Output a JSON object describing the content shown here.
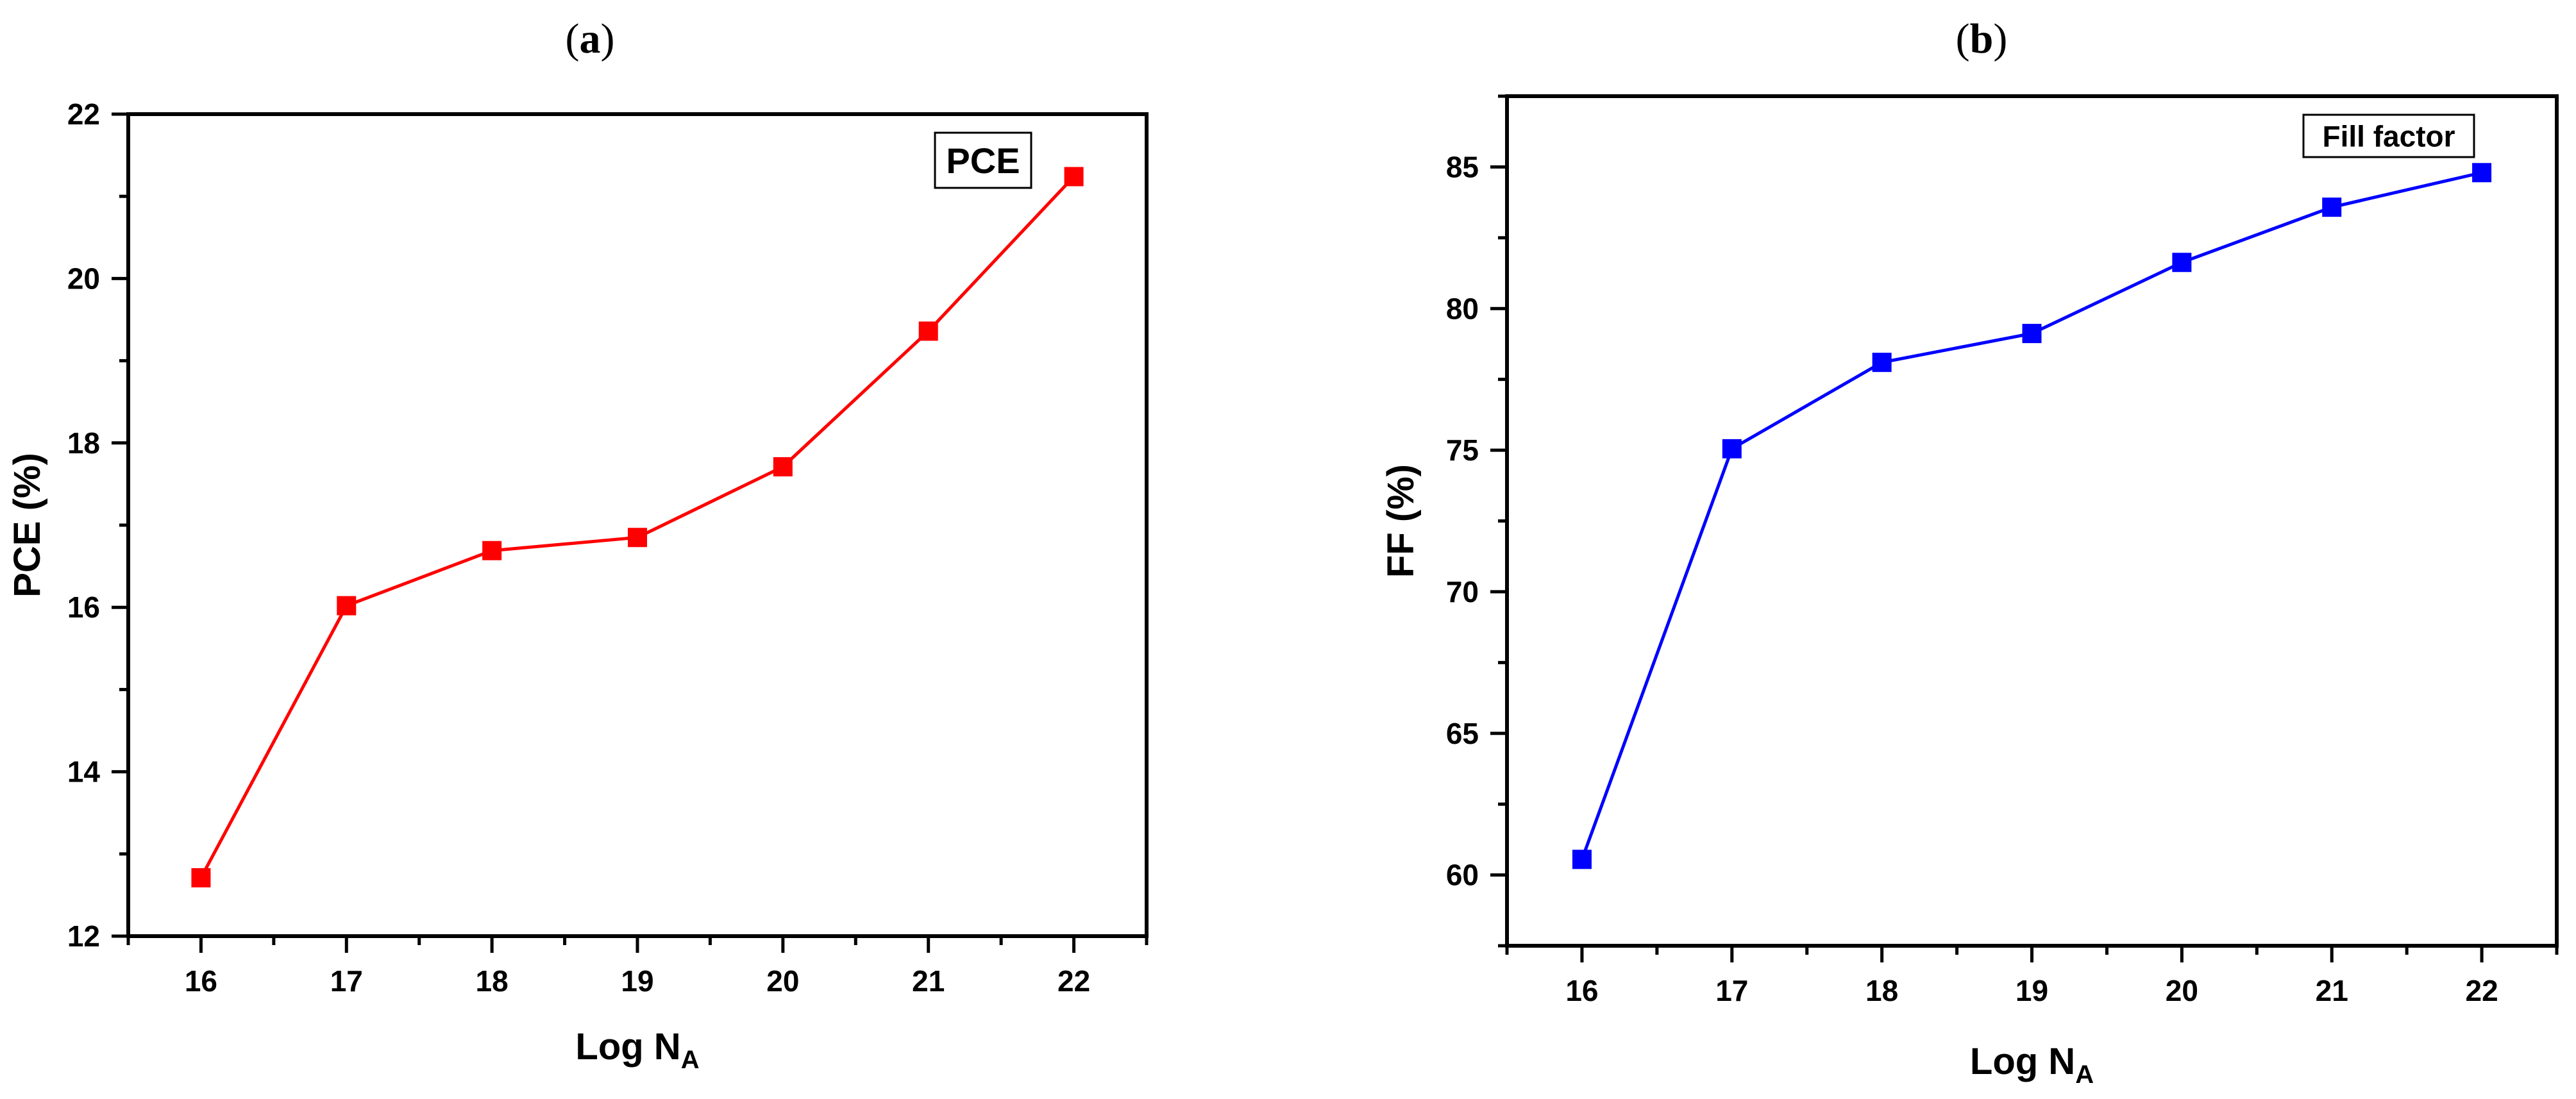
{
  "figure": {
    "panel_a_label": "a",
    "panel_b_label": "b"
  },
  "chart_data": [
    {
      "type": "line",
      "panel": "a",
      "xlabel_main": "Log N",
      "xlabel_sub": "A",
      "ylabel": "PCE (%)",
      "legend_label": "PCE",
      "legend_position": "top-right",
      "xlim": [
        15.5,
        22.5
      ],
      "ylim": [
        12,
        22
      ],
      "xticks": [
        16,
        17,
        18,
        19,
        20,
        21,
        22
      ],
      "yticks": [
        12,
        14,
        16,
        18,
        20,
        22
      ],
      "color": "#ff0000",
      "marker": "square",
      "grid": false,
      "x": [
        16,
        17,
        18,
        19,
        20,
        21,
        22
      ],
      "y": [
        12.71,
        16.02,
        16.69,
        16.85,
        17.71,
        19.36,
        21.24
      ]
    },
    {
      "type": "line",
      "panel": "b",
      "xlabel_main": "Log N",
      "xlabel_sub": "A",
      "ylabel": "FF (%)",
      "legend_label": "Fill factor",
      "legend_position": "top-right",
      "xlim": [
        15.5,
        22.5
      ],
      "ylim": [
        57.5,
        87.5
      ],
      "xticks": [
        16,
        17,
        18,
        19,
        20,
        21,
        22
      ],
      "yticks": [
        60,
        65,
        70,
        75,
        80,
        85
      ],
      "color": "#0000ff",
      "marker": "square",
      "grid": false,
      "x": [
        16,
        17,
        18,
        19,
        20,
        21,
        22
      ],
      "y": [
        60.55,
        75.05,
        78.1,
        79.12,
        81.63,
        83.58,
        84.8
      ]
    }
  ]
}
